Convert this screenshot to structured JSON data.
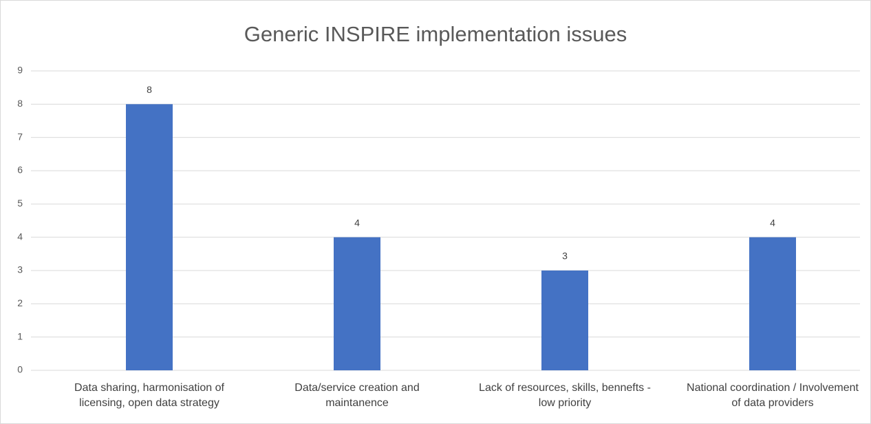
{
  "chart_data": {
    "type": "bar",
    "title": "Generic INSPIRE implementation issues",
    "categories": [
      "Data sharing, harmonisation of licensing, open data strategy",
      "Data/service creation and maintanence",
      "Lack of resources, skills, bennefts - low priority",
      "National coordination / Involvement of data providers"
    ],
    "values": [
      8,
      4,
      3,
      4
    ],
    "color": "#4472c4",
    "ylim": [
      0,
      9
    ],
    "yticks": [
      0,
      1,
      2,
      3,
      4,
      5,
      6,
      7,
      8,
      9
    ],
    "grid": true
  }
}
